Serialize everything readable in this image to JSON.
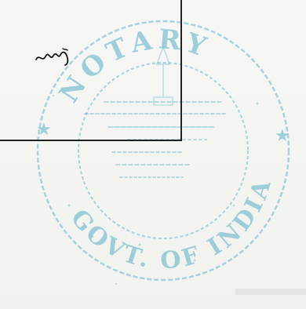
{
  "document": {
    "seal": {
      "upper_text": "NOTARY",
      "lower_text": "GOVT. OF INDIA",
      "emblem": "state-emblem-icon",
      "ink_color": "#4aa8c4"
    },
    "signature": {
      "kind": "handwritten-initials"
    },
    "frame": {
      "line_color": "#222222"
    }
  }
}
